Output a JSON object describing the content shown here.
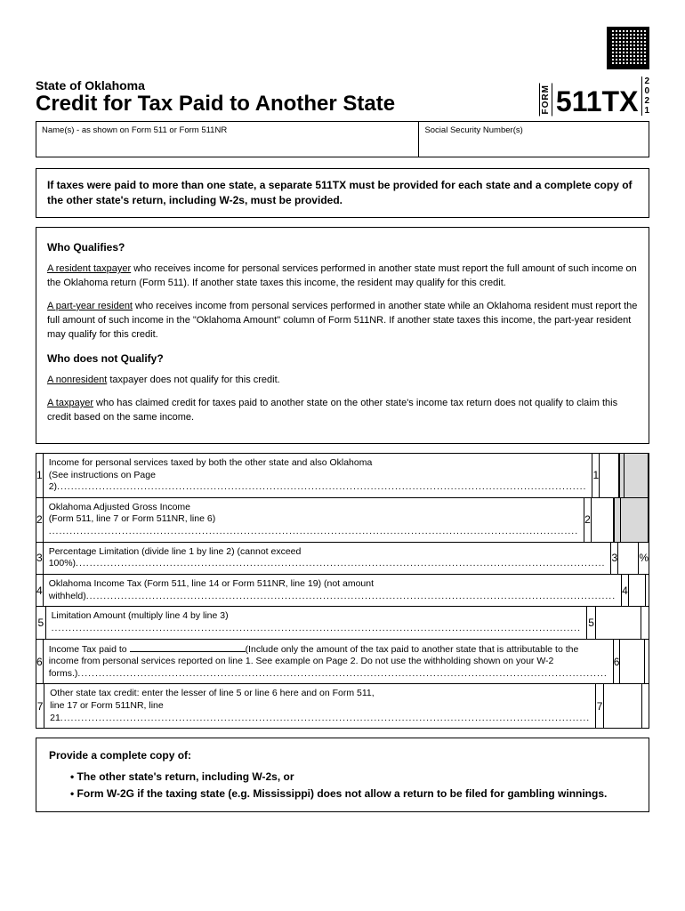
{
  "header": {
    "state": "State of Oklahoma",
    "title": "Credit for Tax Paid to Another State",
    "form_label": "FORM",
    "form_number": "511TX",
    "year": [
      "2",
      "0",
      "2",
      "1"
    ]
  },
  "id_row": {
    "names_label": "Name(s) - as shown on Form 511 or Form 511NR",
    "ssn_label": "Social Security Number(s)"
  },
  "notice": "If taxes were paid to more than one state, a separate 511TX must be provided for each state and a complete copy of the other state's return, including W-2s, must be provided.",
  "qualify": {
    "h1": "Who Qualifies?",
    "p1_u": "A resident taxpayer",
    "p1": " who receives income for personal services performed in another state must report the full amount of such income on the Oklahoma return (Form 511).  If another state taxes this income, the resident may qualify for this credit.",
    "p2_u": "A part-year resident",
    "p2": " who receives income from personal services performed in another state while an Oklahoma resident must report the full amount of such income in the \"Oklahoma Amount\" column of Form 511NR. If another state taxes this income, the part-year resident may qualify for this credit.",
    "h2": "Who does not Qualify?",
    "p3_u": "A nonresident",
    "p3": " taxpayer does not qualify for this credit.",
    "p4_u": "A taxpayer",
    "p4": " who has claimed credit for taxes paid to another state on the other state's income tax return does not qualify to claim this credit based on the same income."
  },
  "lines": {
    "l1": {
      "n": "1",
      "d": "Income for personal services taxed by both the other state and also Oklahoma",
      "d2": "(See instructions on Page 2)"
    },
    "l2": {
      "n": "2",
      "d": "Oklahoma Adjusted Gross Income",
      "d2": "(Form 511, line 7 or Form 511NR, line 6)"
    },
    "l3": {
      "n": "3",
      "d": "Percentage Limitation (divide line 1 by line 2) (cannot exceed 100%)",
      "pct": "%"
    },
    "l4": {
      "n": "4",
      "d": "Oklahoma Income Tax (Form 511, line 14 or Form 511NR, line 19) (not amount withheld)"
    },
    "l5": {
      "n": "5",
      "d": "Limitation Amount (multiply line 4 by line 3)"
    },
    "l6": {
      "n": "6",
      "d_pre": "Income Tax paid to ",
      "d_post": "(Include only the amount of the tax paid to another state that is attributable to the income from personal services reported on line 1. See example on Page 2. Do not use the withholding shown on your W-2 forms.)"
    },
    "l7": {
      "n": "7",
      "d": "Other state tax credit: enter the lesser of line 5 or line 6 here and on Form 511,",
      "d2": "line 17 or Form 511NR, line 21"
    }
  },
  "provide": {
    "h": "Provide a complete copy of:",
    "b1": "The other state's return, including W-2s, or",
    "b2": "Form W-2G if the taxing state (e.g. Mississippi) does not allow a return to be filed for gambling winnings."
  }
}
